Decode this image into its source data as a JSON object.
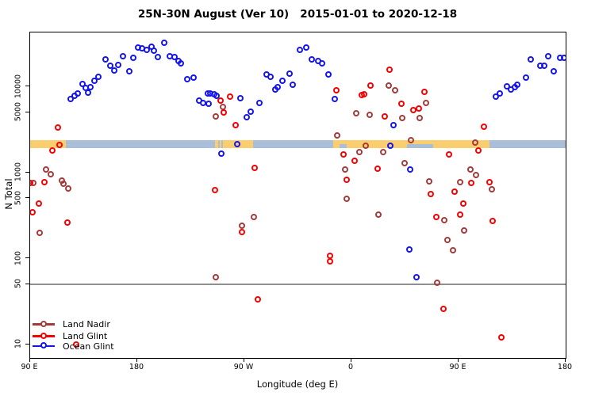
{
  "title": "25N-30N August (Ver 10)   2015-01-01 to 2020-12-18",
  "axes": {
    "x": {
      "label": "Longitude (deg E)",
      "ticks": [
        {
          "lon": 90,
          "label": "90 E"
        },
        {
          "lon": 180,
          "label": "180"
        },
        {
          "lon": 270,
          "label": "90 W"
        },
        {
          "lon": 360,
          "label": "0"
        },
        {
          "lon": 450,
          "label": "90 E"
        },
        {
          "lon": 540,
          "label": "180"
        }
      ]
    },
    "y": {
      "label": "N Total",
      "scale": "log",
      "ticks": [
        {
          "value": 10000,
          "label": "10000"
        },
        {
          "value": 5000,
          "label": "5000"
        },
        {
          "value": 1000,
          "label": "1000"
        },
        {
          "value": 500,
          "label": "500"
        },
        {
          "value": 100,
          "label": "100"
        },
        {
          "value": 50,
          "label": "50"
        },
        {
          "value": 10,
          "label": "10"
        }
      ]
    }
  },
  "reference_line": {
    "value": 50,
    "color": "#8f8f8f"
  },
  "surface_band": {
    "land_color": "#FACD6E",
    "ocean_color": "#A9BFD9",
    "value_center": 2150,
    "segments": [
      {
        "type": "land",
        "lon_start": 90,
        "lon_end": 120
      },
      {
        "type": "ocean",
        "lon_start": 120,
        "lon_end": 245.3
      },
      {
        "type": "land",
        "lon_start": 245.3,
        "lon_end": 277.3
      },
      {
        "type": "ocean",
        "lon_start": 277.3,
        "lon_end": 344.7
      },
      {
        "type": "land",
        "lon_start": 344.7,
        "lon_end": 476
      },
      {
        "type": "ocean",
        "lon_start": 476,
        "lon_end": 540
      }
    ],
    "ocean_details": [
      {
        "lon_start": 247.7,
        "lon_end": 249.2,
        "part": "full"
      },
      {
        "lon_start": 250.8,
        "lon_end": 252.3,
        "part": "full"
      },
      {
        "lon_start": 350,
        "lon_end": 356,
        "part": "lower"
      },
      {
        "lon_start": 406.7,
        "lon_end": 429,
        "part": "lower"
      }
    ]
  },
  "legend": [
    {
      "label": "Land Nadir",
      "color": "#A33B3B"
    },
    {
      "label": "Land Glint",
      "color": "#F80000"
    },
    {
      "label": "Ocean Glint",
      "color": "#1414F0"
    }
  ],
  "chart_data": {
    "type": "scatter",
    "title": "25N-30N August (Ver 10)   2015-01-01 to 2020-12-18",
    "xlabel": "Longitude (deg E)",
    "ylabel": "N Total",
    "x_range_deg_east": [
      90,
      540
    ],
    "y_scale": "log",
    "y_range": [
      8,
      40000
    ],
    "grid": false,
    "legend_position": "bottom-left",
    "series": [
      {
        "name": "Land Nadir",
        "color": "#A33B3B",
        "points": [
          [
            103.8,
            1070
          ],
          [
            107.8,
            960
          ],
          [
            92.7,
            760
          ],
          [
            117.1,
            805
          ],
          [
            118.2,
            730
          ],
          [
            122,
            650
          ],
          [
            98.2,
            196
          ],
          [
            252.2,
            5800
          ],
          [
            246,
            4450
          ],
          [
            268,
            240
          ],
          [
            278.2,
            300
          ],
          [
            246,
            60
          ],
          [
            364,
            4840
          ],
          [
            375.8,
            4700
          ],
          [
            348,
            2670
          ],
          [
            372,
            2020
          ],
          [
            366.9,
            1710
          ],
          [
            386.9,
            1710
          ],
          [
            354.7,
            1080
          ],
          [
            356.5,
            490
          ],
          [
            382.9,
            325
          ],
          [
            391.7,
            10300
          ],
          [
            396.9,
            8900
          ],
          [
            422.9,
            6400
          ],
          [
            402.9,
            4300
          ],
          [
            417.8,
            4300
          ],
          [
            410.2,
            2390
          ],
          [
            405.1,
            1270
          ],
          [
            425.5,
            790
          ],
          [
            451.8,
            770
          ],
          [
            460.5,
            1080
          ],
          [
            465.3,
            930
          ],
          [
            454.9,
            210
          ],
          [
            440.7,
            163
          ],
          [
            445.5,
            125
          ],
          [
            438.5,
            280
          ],
          [
            432.2,
            52
          ],
          [
            464.5,
            2230
          ],
          [
            478.2,
            640
          ]
        ]
      },
      {
        "name": "Land Glint",
        "color": "#F80000",
        "points": [
          [
            113.8,
            3300
          ],
          [
            114.7,
            2100
          ],
          [
            108.7,
            1800
          ],
          [
            90.3,
            760
          ],
          [
            102.5,
            770
          ],
          [
            97.8,
            430
          ],
          [
            92.5,
            340
          ],
          [
            121.5,
            260
          ],
          [
            128.7,
            10
          ],
          [
            258.2,
            7600
          ],
          [
            250,
            6900
          ],
          [
            253.1,
            4950
          ],
          [
            262.7,
            3550
          ],
          [
            278.9,
            1120
          ],
          [
            245.5,
            625
          ],
          [
            268,
            203
          ],
          [
            281.5,
            33
          ],
          [
            347.5,
            8900
          ],
          [
            369.1,
            7950
          ],
          [
            370.9,
            8100
          ],
          [
            376.5,
            10300
          ],
          [
            388,
            4450
          ],
          [
            353.5,
            1630
          ],
          [
            363.1,
            1360
          ],
          [
            356.5,
            820
          ],
          [
            382.5,
            1100
          ],
          [
            342.5,
            107
          ],
          [
            342.5,
            93
          ],
          [
            392.2,
            15500
          ],
          [
            421.5,
            8700
          ],
          [
            402.2,
            6250
          ],
          [
            412.2,
            5300
          ],
          [
            417.1,
            5500
          ],
          [
            442.2,
            1630
          ],
          [
            466.7,
            1800
          ],
          [
            426.7,
            565
          ],
          [
            446.7,
            590
          ],
          [
            460.9,
            750
          ],
          [
            454.5,
            430
          ],
          [
            451.8,
            320
          ],
          [
            431.8,
            305
          ],
          [
            437.8,
            26
          ],
          [
            471.8,
            3400
          ],
          [
            476,
            775
          ],
          [
            479.1,
            270
          ],
          [
            486.2,
            12
          ]
        ]
      },
      {
        "name": "Ocean Glint",
        "color": "#1414F0",
        "points": [
          [
            124,
            7150
          ],
          [
            127.5,
            7700
          ],
          [
            130,
            8300
          ],
          [
            134.2,
            10600
          ],
          [
            137.3,
            9500
          ],
          [
            141.1,
            9800
          ],
          [
            138.7,
            8500
          ],
          [
            144.5,
            11500
          ],
          [
            147.8,
            12800
          ],
          [
            153.8,
            20600
          ],
          [
            157.8,
            17300
          ],
          [
            161.3,
            15300
          ],
          [
            164,
            17600
          ],
          [
            168.5,
            22600
          ],
          [
            173.5,
            15000
          ],
          [
            177.3,
            21400
          ],
          [
            181.3,
            28000
          ],
          [
            184.5,
            27600
          ],
          [
            188.5,
            26400
          ],
          [
            192.5,
            28600
          ],
          [
            194,
            26100
          ],
          [
            197.8,
            21800
          ],
          [
            203.3,
            31800
          ],
          [
            207.5,
            22600
          ],
          [
            211.5,
            21800
          ],
          [
            214.7,
            19900
          ],
          [
            217.3,
            18300
          ],
          [
            222.2,
            12200
          ],
          [
            227.8,
            12700
          ],
          [
            232.2,
            6900
          ],
          [
            235.5,
            6400
          ],
          [
            239.5,
            8350
          ],
          [
            240,
            6300
          ],
          [
            241.5,
            8300
          ],
          [
            244.9,
            8100
          ],
          [
            247.1,
            7800
          ],
          [
            251.1,
            1660
          ],
          [
            264.5,
            2120
          ],
          [
            267.1,
            7200
          ],
          [
            272,
            4400
          ],
          [
            275.5,
            5100
          ],
          [
            283.3,
            6400
          ],
          [
            288.7,
            13800
          ],
          [
            292,
            13000
          ],
          [
            296,
            9150
          ],
          [
            298.2,
            9800
          ],
          [
            302.2,
            11600
          ],
          [
            308.2,
            14000
          ],
          [
            310.9,
            10500
          ],
          [
            316.9,
            26400
          ],
          [
            322.5,
            28400
          ],
          [
            326.9,
            20400
          ],
          [
            332,
            19900
          ],
          [
            335.8,
            18600
          ],
          [
            341.3,
            13800
          ],
          [
            346.5,
            7050
          ],
          [
            393.1,
            2050
          ],
          [
            395.5,
            3550
          ],
          [
            409.5,
            1080
          ],
          [
            408.9,
            128
          ],
          [
            414.9,
            61
          ],
          [
            481.8,
            7600
          ],
          [
            485.1,
            8300
          ],
          [
            490.7,
            9900
          ],
          [
            494,
            9150
          ],
          [
            497.8,
            9800
          ],
          [
            499.5,
            10500
          ],
          [
            506.7,
            12700
          ],
          [
            511.1,
            20400
          ],
          [
            518.9,
            17300
          ],
          [
            522.2,
            17300
          ],
          [
            525.8,
            22600
          ],
          [
            530.2,
            15000
          ],
          [
            535.5,
            21400
          ],
          [
            539.3,
            21300
          ]
        ]
      }
    ]
  }
}
